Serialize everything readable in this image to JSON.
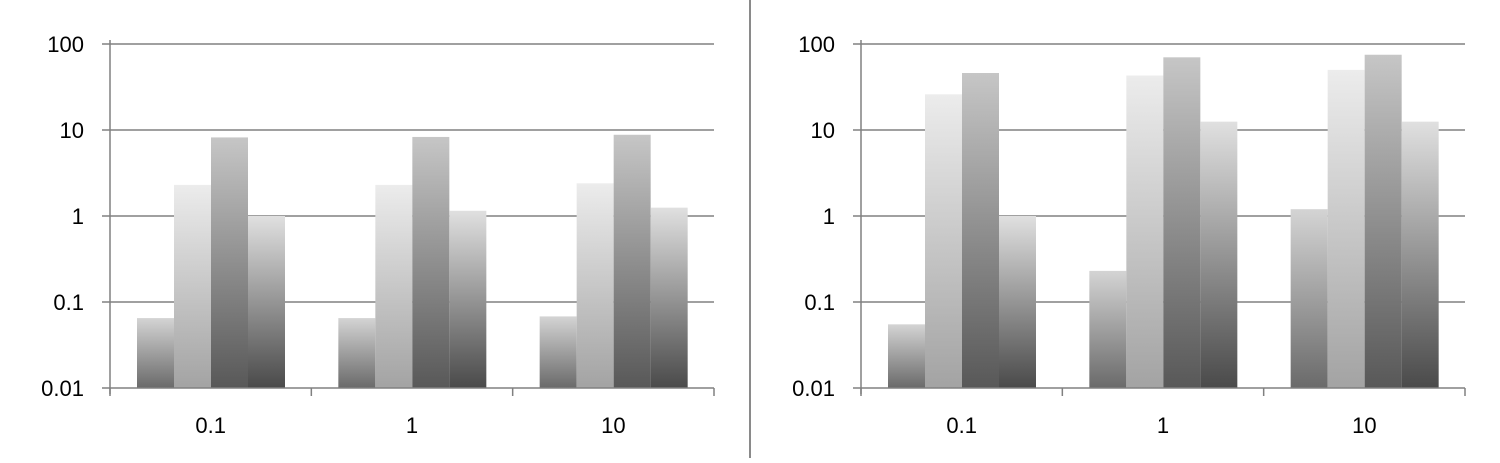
{
  "chart_data": [
    {
      "type": "bar",
      "yscale": "log",
      "ylim": [
        0.01,
        100
      ],
      "yticks": [
        "0.01",
        "0.1",
        "1",
        "10",
        "100"
      ],
      "categories": [
        "0.1",
        "1",
        "10"
      ],
      "grid": true,
      "legend": "none",
      "series": [
        {
          "values": [
            0.065,
            0.065,
            0.068
          ]
        },
        {
          "values": [
            2.3,
            2.3,
            2.4
          ]
        },
        {
          "values": [
            8.2,
            8.3,
            8.8
          ]
        },
        {
          "values": [
            1.0,
            1.15,
            1.25
          ]
        }
      ]
    },
    {
      "type": "bar",
      "yscale": "log",
      "ylim": [
        0.01,
        100
      ],
      "yticks": [
        "0.01",
        "0.1",
        "1",
        "10",
        "100"
      ],
      "categories": [
        "0.1",
        "1",
        "10"
      ],
      "grid": true,
      "legend": "none",
      "series": [
        {
          "values": [
            0.055,
            0.23,
            1.2
          ]
        },
        {
          "values": [
            26,
            43,
            50
          ]
        },
        {
          "values": [
            46,
            70,
            75
          ]
        },
        {
          "values": [
            1.0,
            12.5,
            12.5
          ]
        }
      ]
    }
  ],
  "colors": {
    "gridline": "#808080",
    "axis": "#808080",
    "divider": "#8a8a8a",
    "series_gradients": [
      [
        "#d4d4d4",
        "#6a6a6a"
      ],
      [
        "#ececec",
        "#a3a3a3"
      ],
      [
        "#c6c6c6",
        "#585858"
      ],
      [
        "#e0e0e0",
        "#4a4a4a"
      ]
    ]
  }
}
